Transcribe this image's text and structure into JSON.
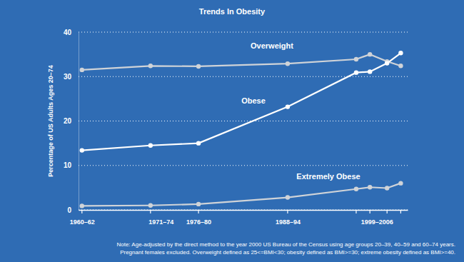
{
  "chart_data": {
    "type": "line",
    "title": "Trends In Obesity",
    "y_label": "Percentage of US Adults Ages 20–74",
    "x": [
      1961,
      1971,
      1978,
      1991,
      2001,
      2003,
      2005.5,
      2007.5
    ],
    "series": [
      {
        "name": "Overweight",
        "color": "#cfd3d8",
        "values": [
          31.5,
          32.4,
          32.3,
          32.9,
          33.9,
          35.0,
          33.4,
          32.4
        ]
      },
      {
        "name": "Obese",
        "color": "#ffffff",
        "values": [
          13.4,
          14.5,
          15.0,
          23.2,
          30.9,
          31.1,
          33.0,
          35.3
        ]
      },
      {
        "name": "Extremely Obese",
        "color": "#cfd3d8",
        "values": [
          0.9,
          1.0,
          1.3,
          2.8,
          4.7,
          5.1,
          4.9,
          6.0
        ]
      }
    ],
    "xlim": [
      1960.5,
      2008.5
    ],
    "xticks": [
      {
        "value": 1961,
        "label": "1960–62"
      },
      {
        "value": 1972.5,
        "label": "1971–74"
      },
      {
        "value": 1978,
        "label": "1976–80"
      },
      {
        "value": 1991,
        "label": "1988–94"
      },
      {
        "value": 2004,
        "label": "1999–2006"
      }
    ],
    "ylim": [
      0,
      40
    ],
    "yticks": [
      0,
      10,
      20,
      30,
      40
    ],
    "grid": true,
    "marker": "circle",
    "annotations": [
      "Note: Age-adjusted by the direct method to the year 2000 US Bureau of the Census using age groups 20–39, 40–59 and 60–74 years.",
      "Pregnant females excluded. Overweight defined as 25<=BMI<30; obesity defined as BMI>=30; extreme obesity defined as BMI>=40."
    ]
  }
}
